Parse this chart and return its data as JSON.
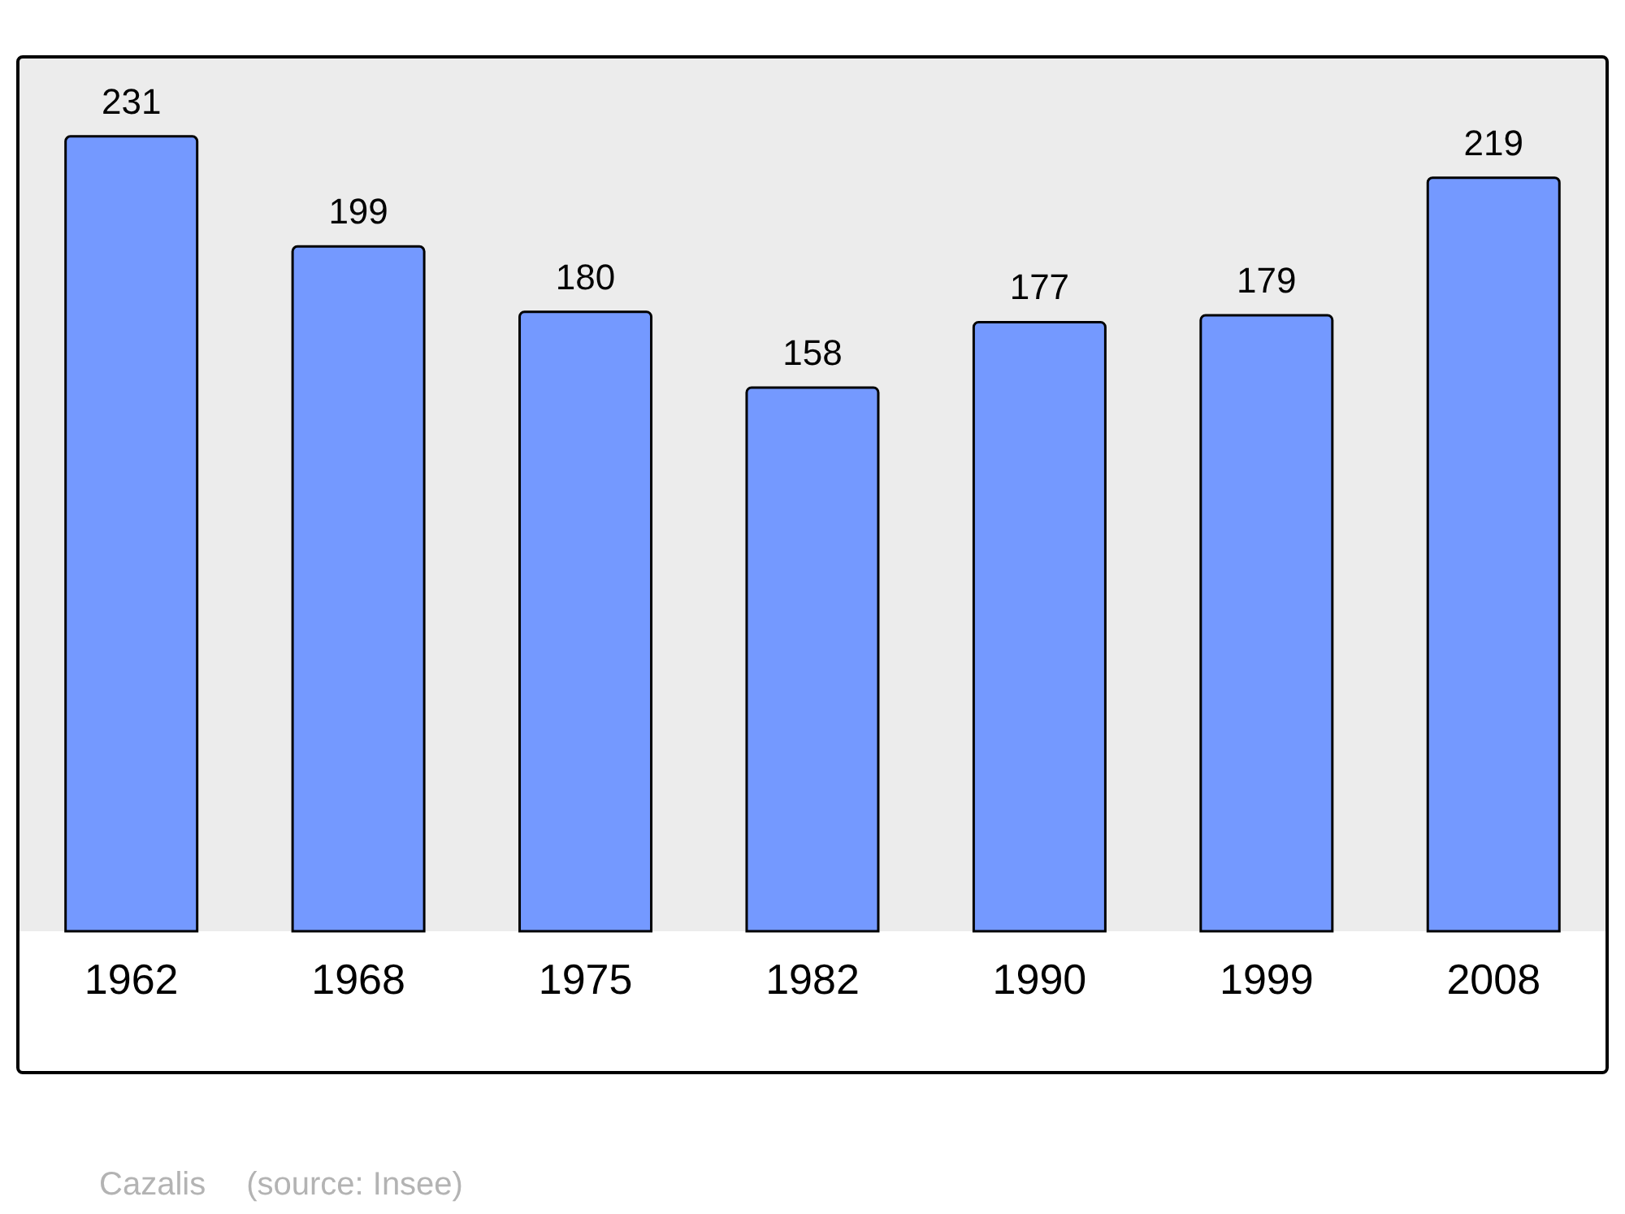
{
  "chart_data": {
    "type": "bar",
    "categories": [
      "1962",
      "1968",
      "1975",
      "1982",
      "1990",
      "1999",
      "2008"
    ],
    "values": [
      231,
      199,
      180,
      158,
      177,
      179,
      219
    ],
    "color": "#7499ff",
    "data_labels": true,
    "annotations": [
      "Cazalis",
      "(source: Insee)"
    ]
  }
}
